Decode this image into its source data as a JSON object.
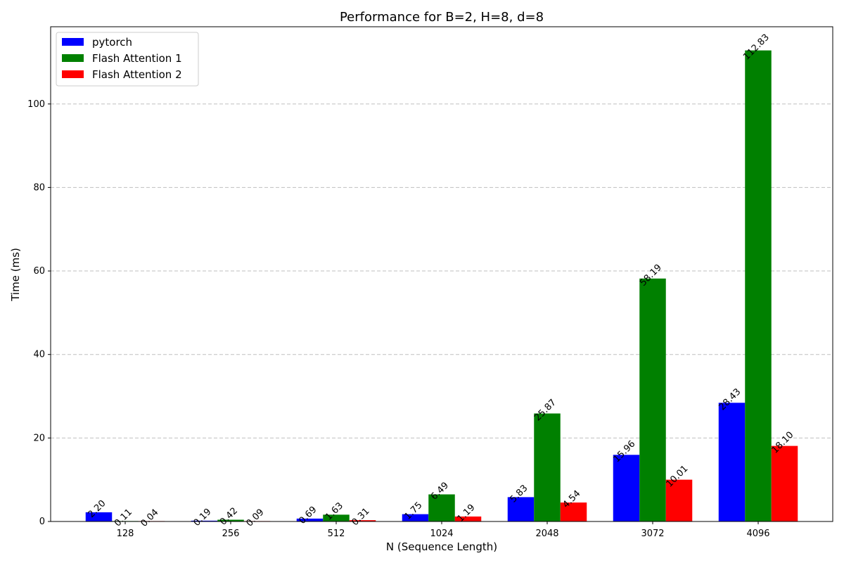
{
  "chart_data": {
    "type": "bar",
    "title": "Performance for B=2, H=8, d=8",
    "xlabel": "N (Sequence Length)",
    "ylabel": "Time (ms)",
    "categories": [
      "128",
      "256",
      "512",
      "1024",
      "2048",
      "3072",
      "4096"
    ],
    "series": [
      {
        "name": "pytorch",
        "color": "#0000ff",
        "values": [
          2.2,
          0.19,
          0.69,
          1.75,
          5.83,
          15.96,
          28.43
        ],
        "labels": [
          "2.20",
          "0.19",
          "0.69",
          "1.75",
          "5.83",
          "15.96",
          "28.43"
        ]
      },
      {
        "name": "Flash Attention 1",
        "color": "#008000",
        "values": [
          0.11,
          0.42,
          1.63,
          6.49,
          25.87,
          58.19,
          112.83
        ],
        "labels": [
          "0.11",
          "0.42",
          "1.63",
          "6.49",
          "25.87",
          "58.19",
          "112.83"
        ]
      },
      {
        "name": "Flash Attention 2",
        "color": "#ff0000",
        "values": [
          0.04,
          0.09,
          0.31,
          1.19,
          4.54,
          10.01,
          18.1
        ],
        "labels": [
          "0.04",
          "0.09",
          "0.31",
          "1.19",
          "4.54",
          "10.01",
          "18.10"
        ]
      }
    ],
    "yticks": [
      0,
      20,
      40,
      60,
      80,
      100
    ],
    "ylim": [
      0,
      118.5
    ],
    "grid": "y-dashed",
    "legend_position": "top-left"
  }
}
